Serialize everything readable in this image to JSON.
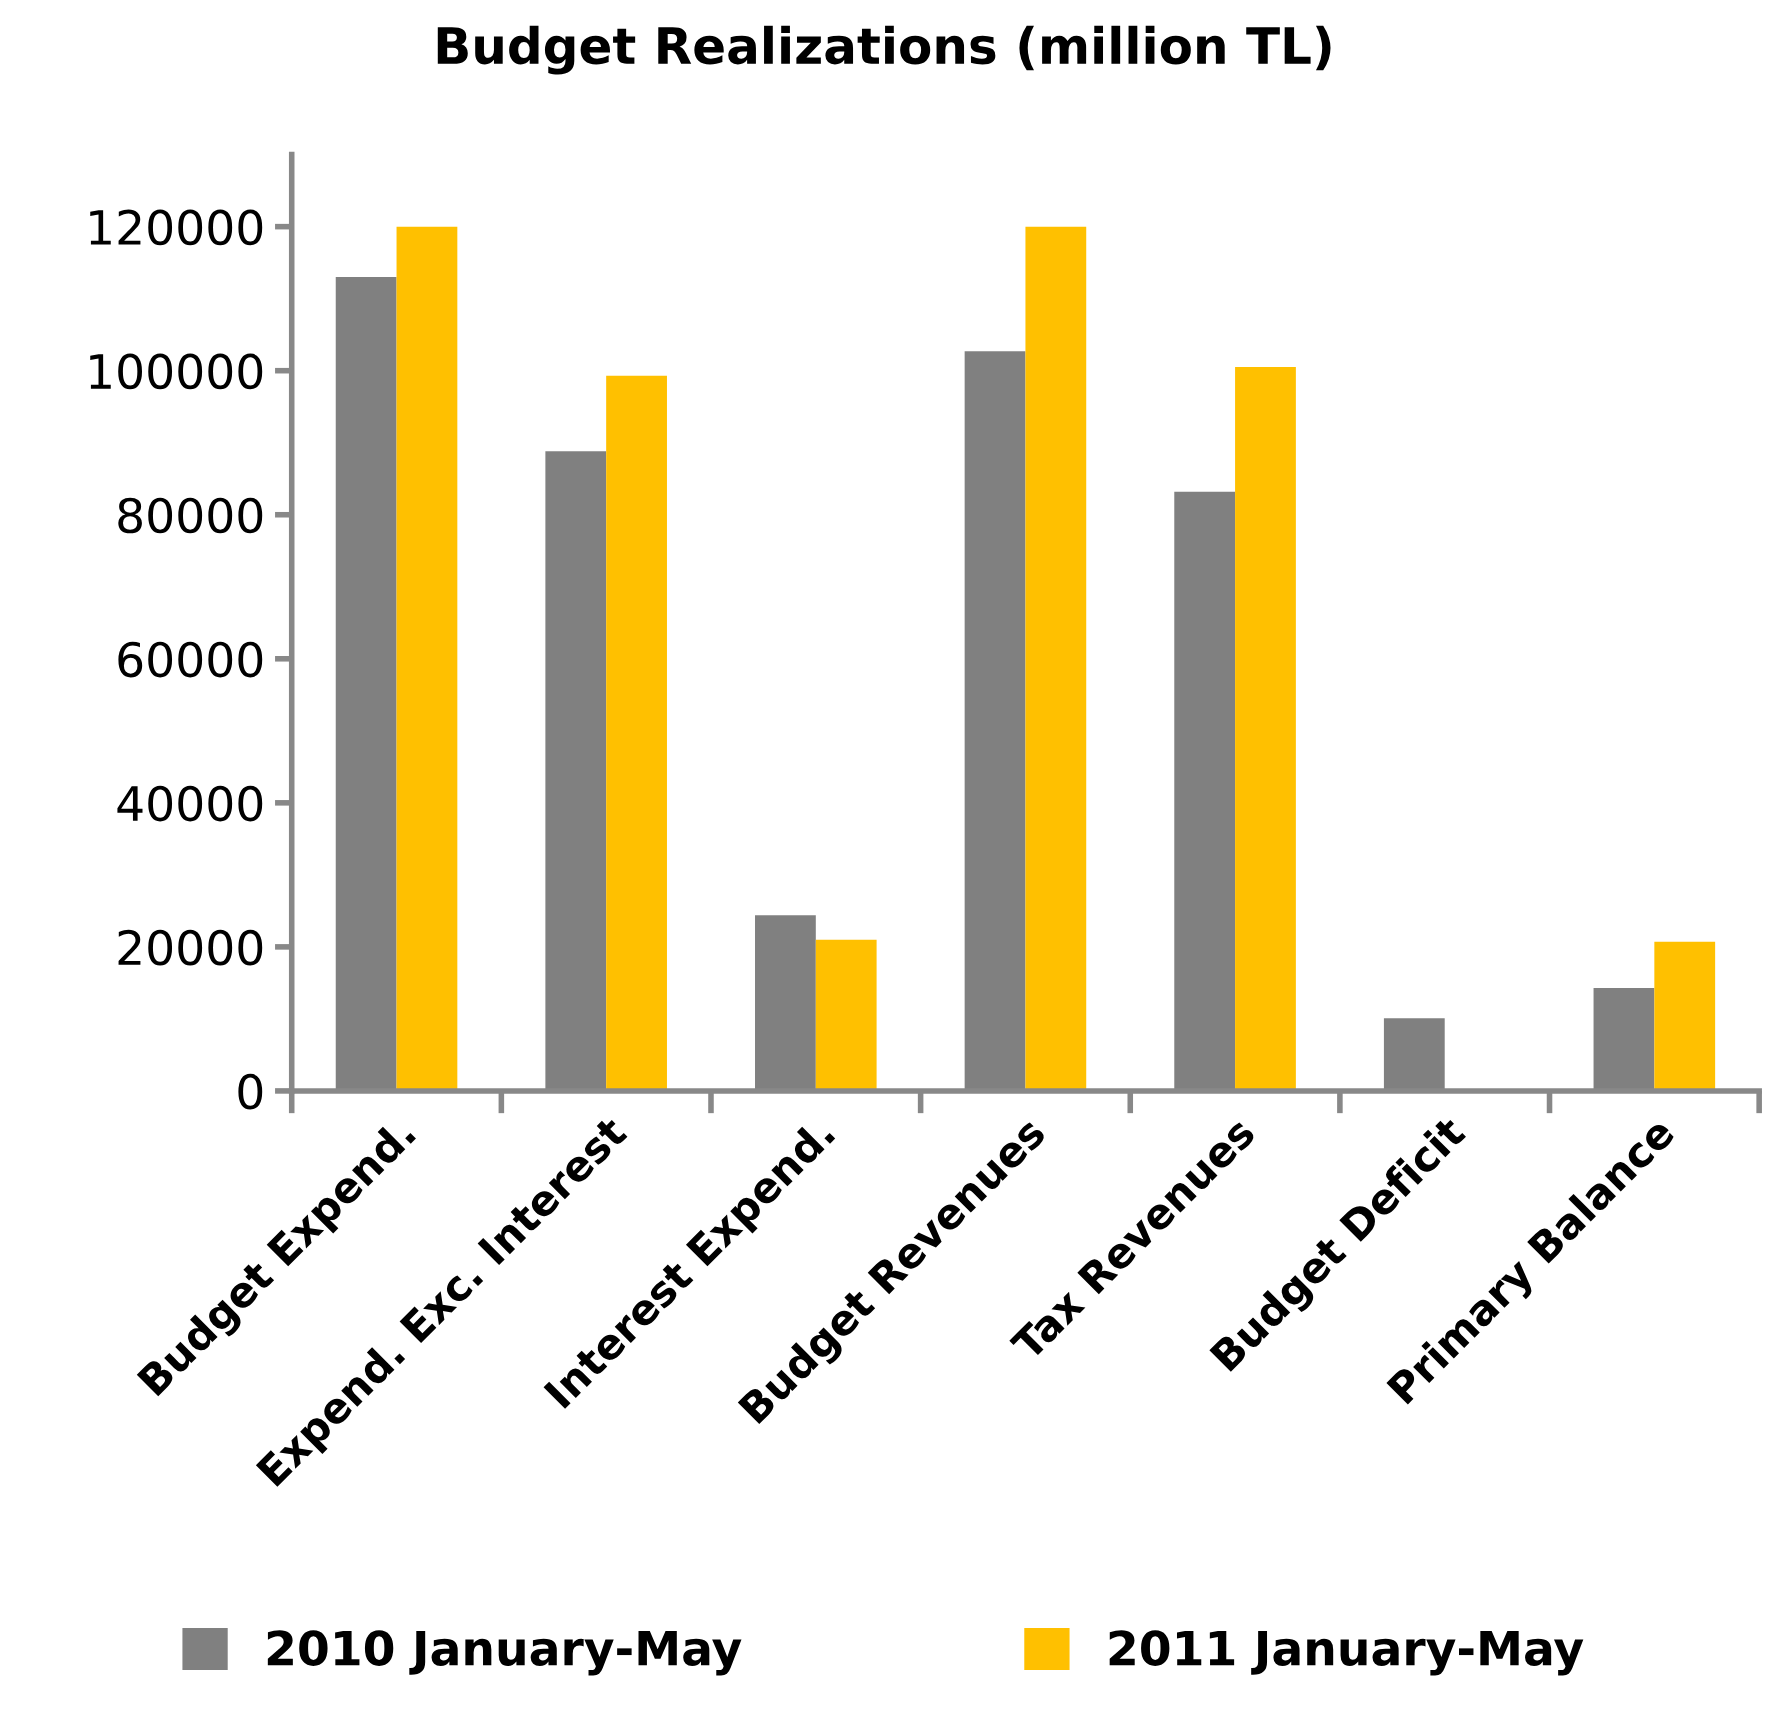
{
  "chart_data": {
    "type": "bar",
    "title": "Budget Realizations (million TL)",
    "categories": [
      "Budget Expend.",
      "Expend. Exc. Interest",
      "Interest Expend.",
      "Budget Revenues",
      "Tax Revenues",
      "Budget Deficit",
      "Primary Balance"
    ],
    "series": [
      {
        "name": "2010 January-May",
        "color": "#808080",
        "values": [
          113000,
          88800,
          24400,
          102700,
          83200,
          10100,
          14300
        ]
      },
      {
        "name": "2011 January-May",
        "color": "#ffc000",
        "values": [
          120000,
          99300,
          21000,
          120000,
          100500,
          null,
          20700
        ]
      }
    ],
    "ylim": [
      0,
      130000
    ],
    "yticks": [
      0,
      20000,
      40000,
      60000,
      80000,
      100000,
      120000
    ],
    "grid": false,
    "legend": "bottom"
  }
}
